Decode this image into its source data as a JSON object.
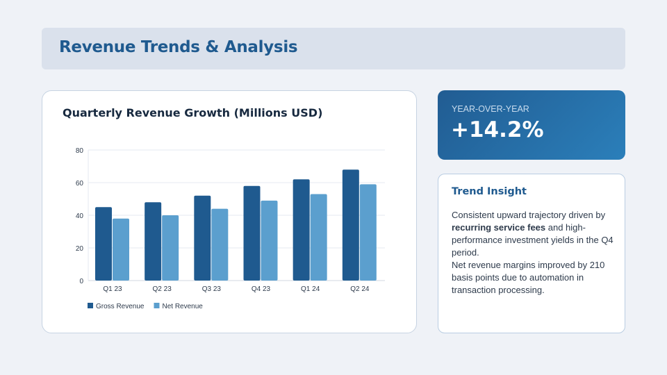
{
  "header": {
    "title": "Revenue Trends & Analysis"
  },
  "chart_card": {
    "title": "Quarterly Revenue Growth (Millions USD)"
  },
  "chart_data": {
    "type": "bar",
    "title": "Quarterly Revenue Growth (Millions USD)",
    "categories": [
      "Q1 23",
      "Q2 23",
      "Q3 23",
      "Q4 23",
      "Q1 24",
      "Q2 24"
    ],
    "series": [
      {
        "name": "Gross Revenue",
        "color": "#1f5a8f",
        "values": [
          45,
          48,
          52,
          58,
          62,
          68
        ]
      },
      {
        "name": "Net Revenue",
        "color": "#5b9fce",
        "values": [
          38,
          40,
          44,
          49,
          53,
          59
        ]
      }
    ],
    "ylim": [
      0,
      80
    ],
    "yticks": [
      0,
      20,
      40,
      60,
      80
    ],
    "grid": true,
    "legend": "bottom-left"
  },
  "yoy": {
    "label": "YEAR-OVER-YEAR",
    "value": "+14.2%"
  },
  "insight": {
    "title": "Trend Insight",
    "p1_before": "Consistent upward trajectory driven by ",
    "p1_bold": "recurring service fees",
    "p1_after": " and high-performance investment yields in the Q4 period.",
    "p2": "Net revenue margins improved by 210 basis points due to automation in transaction processing."
  }
}
